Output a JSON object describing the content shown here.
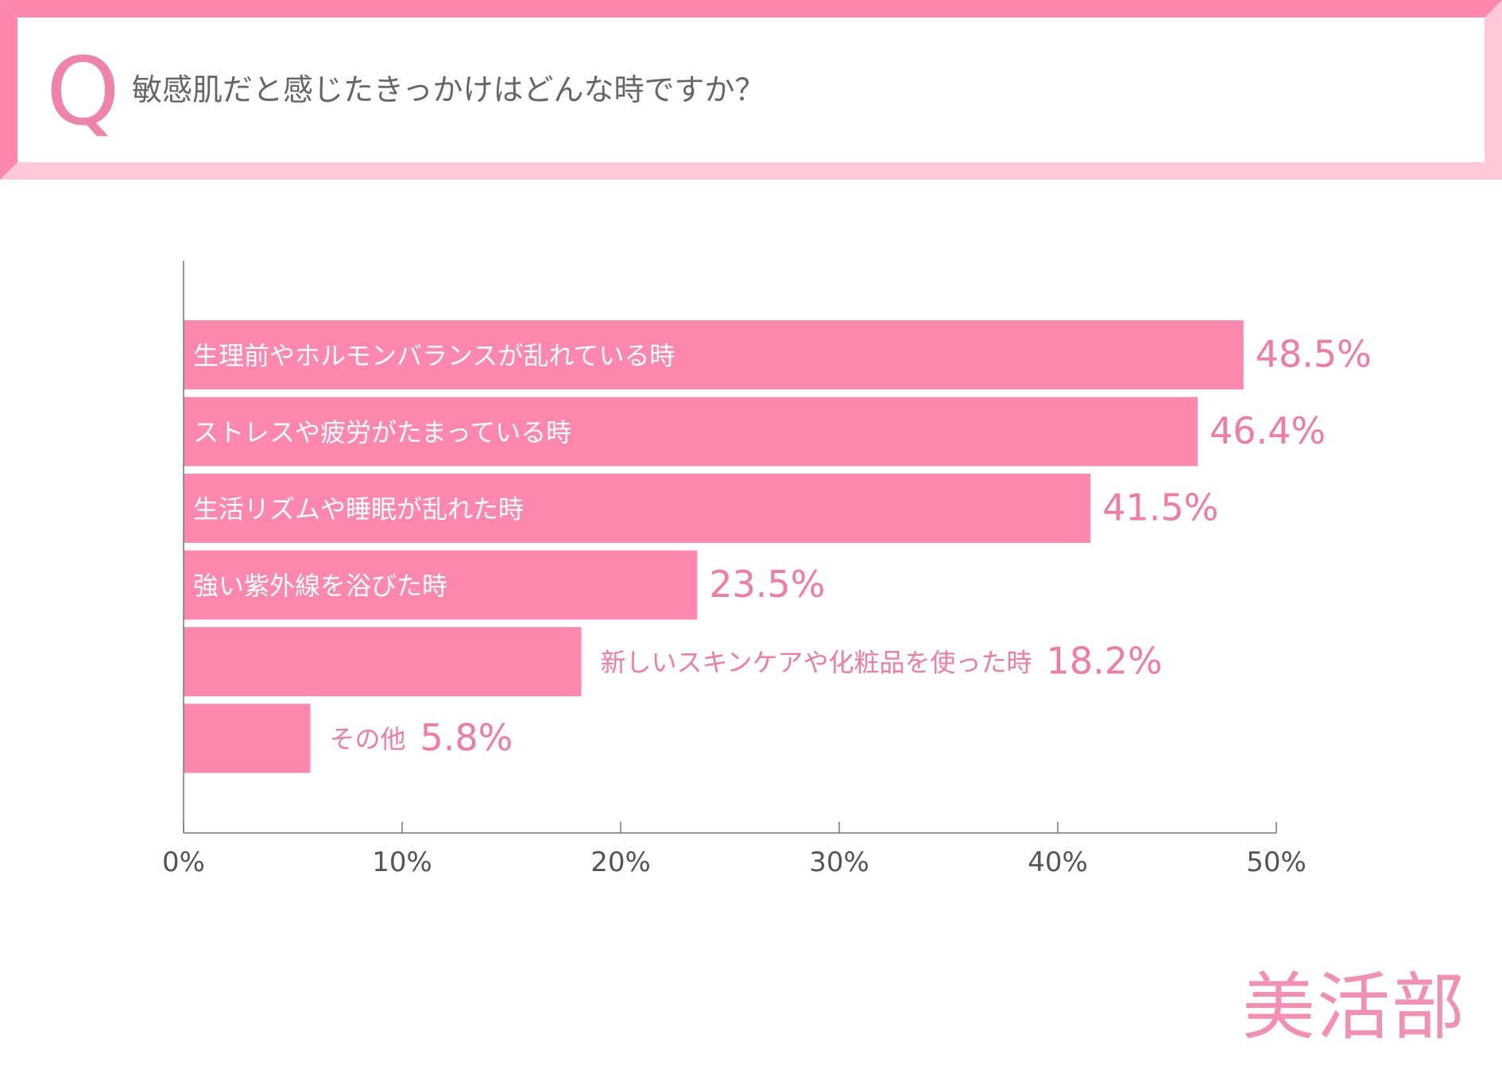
{
  "header": {
    "q_mark": "Q",
    "question": "敏感肌だと感じたきっかけはどんな時ですか？"
  },
  "brand": {
    "logo_text": "美活部"
  },
  "colors": {
    "bar": "#fe87ad",
    "value_label": "#f27aa5",
    "outside_label": "#f27aa5",
    "inside_label": "#ffffff",
    "axis": "#777777",
    "tick_label": "#555555"
  },
  "chart_data": {
    "type": "bar",
    "orientation": "horizontal",
    "title": "敏感肌だと感じたきっかけはどんな時ですか？",
    "categories": [
      "生理前やホルモンバランスが乱れている時",
      "ストレスや疲労がたまっている時",
      "生活リズムや睡眠が乱れた時",
      "強い紫外線を浴びた時",
      "新しいスキンケアや化粧品を使った時",
      "その他"
    ],
    "values": [
      48.5,
      46.4,
      41.5,
      23.5,
      18.2,
      5.8
    ],
    "value_labels": [
      "48.5%",
      "46.4%",
      "41.5%",
      "23.5%",
      "18.2%",
      "5.8%"
    ],
    "label_position": [
      "inside",
      "inside",
      "inside",
      "inside",
      "outside",
      "outside"
    ],
    "xlim": [
      0,
      50
    ],
    "xticks": [
      0,
      10,
      20,
      30,
      40,
      50
    ],
    "xtick_labels": [
      "0%",
      "10%",
      "20%",
      "30%",
      "40%",
      "50%"
    ],
    "xlabel": "",
    "ylabel": "",
    "grid": false,
    "legend": "none"
  }
}
